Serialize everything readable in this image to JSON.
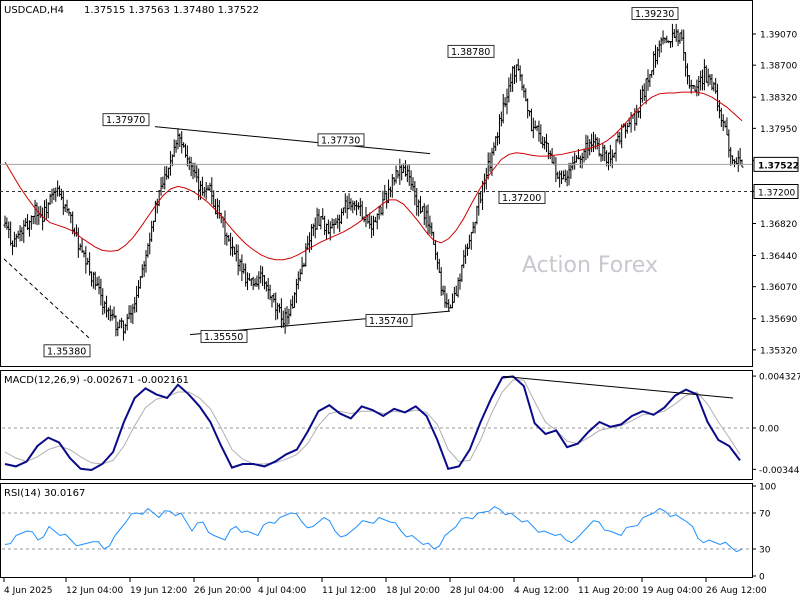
{
  "header": {
    "symbol": "USDCAD,H4",
    "ohlc": "1.37515 1.37563 1.37480 1.37522"
  },
  "watermark": "Action Forex",
  "colors": {
    "candle": "#000000",
    "ma": "#d00000",
    "macd": "#0a0a8a",
    "signal": "#b0b0b0",
    "rsi": "#1e90ff",
    "grid": "#555555"
  },
  "chart_data": [
    {
      "type": "candlestick",
      "title": "USDCAD,H4",
      "y_ticks": [
        "1.39070",
        "1.38700",
        "1.38320",
        "1.37950",
        "1.37570",
        "1.37200",
        "1.36820",
        "1.36440",
        "1.36070",
        "1.35690",
        "1.35320"
      ],
      "ylim": [
        1.3514,
        1.3945
      ],
      "current_price": {
        "label": "1.37522",
        "value": 1.37522
      },
      "support_line": {
        "label": "1.37200",
        "value": 1.372
      },
      "annotations": [
        {
          "label": "1.35380",
          "value": 1.3538
        },
        {
          "label": "1.37970",
          "value": 1.3797
        },
        {
          "label": "1.35550",
          "value": 1.3555
        },
        {
          "label": "1.37730",
          "value": 1.3773
        },
        {
          "label": "1.35740",
          "value": 1.3574
        },
        {
          "label": "1.38780",
          "value": 1.3878
        },
        {
          "label": "1.37200",
          "value": 1.372
        },
        {
          "label": "1.39230",
          "value": 1.3923
        }
      ],
      "close_series": [
        1.368,
        1.366,
        1.367,
        1.368,
        1.37,
        1.369,
        1.371,
        1.372,
        1.37,
        1.368,
        1.365,
        1.363,
        1.361,
        1.359,
        1.357,
        1.356,
        1.356,
        1.358,
        1.362,
        1.366,
        1.37,
        1.373,
        1.376,
        1.379,
        1.377,
        1.374,
        1.372,
        1.373,
        1.37,
        1.368,
        1.365,
        1.364,
        1.362,
        1.361,
        1.362,
        1.36,
        1.358,
        1.357,
        1.358,
        1.361,
        1.365,
        1.368,
        1.369,
        1.367,
        1.368,
        1.37,
        1.371,
        1.37,
        1.369,
        1.368,
        1.37,
        1.372,
        1.374,
        1.375,
        1.373,
        1.37,
        1.369,
        1.366,
        1.361,
        1.358,
        1.36,
        1.364,
        1.367,
        1.371,
        1.374,
        1.377,
        1.381,
        1.385,
        1.387,
        1.384,
        1.38,
        1.379,
        1.377,
        1.375,
        1.373,
        1.374,
        1.376,
        1.377,
        1.378,
        1.377,
        1.376,
        1.377,
        1.379,
        1.38,
        1.381,
        1.384,
        1.387,
        1.389,
        1.39,
        1.391,
        1.39,
        1.385,
        1.384,
        1.386,
        1.385,
        1.382,
        1.378,
        1.376,
        1.3752
      ],
      "ma_series": [
        1.3755,
        1.374,
        1.3725,
        1.3712,
        1.37,
        1.369,
        1.3683,
        1.368,
        1.3677,
        1.3673,
        1.3666,
        1.366,
        1.3654,
        1.365,
        1.3649,
        1.365,
        1.3656,
        1.3665,
        1.3677,
        1.369,
        1.3703,
        1.3715,
        1.3723,
        1.3726,
        1.3724,
        1.372,
        1.3714,
        1.3707,
        1.3698,
        1.3688,
        1.3677,
        1.3667,
        1.3658,
        1.3651,
        1.3645,
        1.3641,
        1.3639,
        1.3639,
        1.3641,
        1.3645,
        1.365,
        1.3655,
        1.366,
        1.3664,
        1.3668,
        1.3672,
        1.3677,
        1.3683,
        1.369,
        1.3697,
        1.3704,
        1.371,
        1.371,
        1.3705,
        1.3695,
        1.3684,
        1.3672,
        1.3662,
        1.3659,
        1.3664,
        1.3674,
        1.3688,
        1.3705,
        1.3721,
        1.3735,
        1.3747,
        1.3758,
        1.3764,
        1.3766,
        1.3765,
        1.3763,
        1.3762,
        1.3762,
        1.3763,
        1.3764,
        1.3766,
        1.3768,
        1.377,
        1.3772,
        1.3775,
        1.378,
        1.3787,
        1.3796,
        1.3806,
        1.3816,
        1.3825,
        1.3832,
        1.3836,
        1.3837,
        1.3837,
        1.3838,
        1.3838,
        1.3838,
        1.3836,
        1.3832,
        1.3826,
        1.382,
        1.3812,
        1.3804
      ]
    },
    {
      "type": "line",
      "title": "MACD(12,26,9) -0.002671 -0.002161",
      "y_ticks": [
        {
          "label": "0.004327",
          "value": 0.004327
        },
        {
          "label": "0.00",
          "value": 0
        },
        {
          "label": "-0.003444",
          "value": -0.003444
        }
      ],
      "ylim": [
        -0.004,
        0.0045
      ],
      "series": [
        {
          "values": [
            -0.003,
            -0.0032,
            -0.0028,
            -0.0015,
            -0.0008,
            -0.0012,
            -0.0025,
            -0.0034,
            -0.0035,
            -0.003,
            -0.002,
            0.0005,
            0.0025,
            0.0033,
            0.0028,
            0.0025,
            0.0036,
            0.0028,
            0.0018,
            0.0005,
            -0.0015,
            -0.0033,
            -0.003,
            -0.003,
            -0.0032,
            -0.0028,
            -0.0022,
            -0.0018,
            -0.0003,
            0.0014,
            0.0019,
            0.0012,
            0.0008,
            0.0018,
            0.0015,
            0.001,
            0.0016,
            0.0013,
            0.0018,
            0.001,
            -0.001,
            -0.0034,
            -0.0032,
            -0.0018,
            0.0005,
            0.0025,
            0.0042,
            0.0043,
            0.0035,
            0.0004,
            -0.0005,
            -0.0002,
            -0.0016,
            -0.0013,
            -0.0003,
            0.0005,
            0.0001,
            0.0003,
            0.001,
            0.0014,
            0.0011,
            0.0017,
            0.0027,
            0.0032,
            0.0028,
            0.0005,
            -0.001,
            -0.0015,
            -0.0027
          ]
        },
        {
          "values": [
            -0.002,
            -0.0025,
            -0.0028,
            -0.0024,
            -0.0018,
            -0.0015,
            -0.0018,
            -0.0024,
            -0.0029,
            -0.003,
            -0.0027,
            -0.0015,
            0.0002,
            0.0017,
            0.0024,
            0.0026,
            0.003,
            0.003,
            0.0025,
            0.0016,
            0,
            -0.0018,
            -0.0026,
            -0.003,
            -0.003,
            -0.0029,
            -0.0026,
            -0.0022,
            -0.0013,
            0.0002,
            0.0012,
            0.0014,
            0.0012,
            0.0014,
            0.0014,
            0.0012,
            0.0014,
            0.0013,
            0.0015,
            0.0013,
            0.0003,
            -0.0018,
            -0.0028,
            -0.0027,
            -0.001,
            0.0012,
            0.003,
            0.004,
            0.004,
            0.0022,
            0.0005,
            -0.0002,
            -0.0011,
            -0.0013,
            -0.0008,
            -0.0002,
            0,
            0.0002,
            0.0006,
            0.0011,
            0.0012,
            0.0014,
            0.002,
            0.0027,
            0.003,
            0.002,
            0.0005,
            -0.0008,
            -0.0022
          ]
        }
      ],
      "trendline": {
        "from": 0.0043,
        "to": 0.0025
      }
    },
    {
      "type": "line",
      "title": "RSI(14) 30.0167",
      "y_ticks": [
        {
          "label": "100",
          "value": 100
        },
        {
          "label": "70",
          "value": 70
        },
        {
          "label": "30",
          "value": 30
        },
        {
          "label": "0",
          "value": 0
        }
      ],
      "ylim": [
        0,
        100
      ],
      "values": [
        35,
        45,
        50,
        40,
        55,
        45,
        40,
        35,
        38,
        30,
        45,
        60,
        70,
        75,
        65,
        72,
        70,
        50,
        60,
        45,
        40,
        55,
        50,
        45,
        60,
        65,
        70,
        60,
        55,
        65,
        50,
        45,
        55,
        60,
        65,
        60,
        50,
        45,
        35,
        30,
        45,
        55,
        65,
        70,
        72,
        74,
        70,
        60,
        55,
        50,
        45,
        40,
        42,
        55,
        60,
        50,
        45,
        55,
        65,
        70,
        72,
        68,
        60,
        42,
        40,
        35,
        32,
        30
      ],
      "x_ticks": [
        "4 Jun 2025",
        "12 Jun 04:00",
        "19 Jun 12:00",
        "26 Jun 20:00",
        "4 Jul 04:00",
        "11 Jul 12:00",
        "18 Jul 20:00",
        "28 Jul 04:00",
        "4 Aug 12:00",
        "11 Aug 20:00",
        "19 Aug 04:00",
        "26 Aug 12:00"
      ]
    }
  ]
}
